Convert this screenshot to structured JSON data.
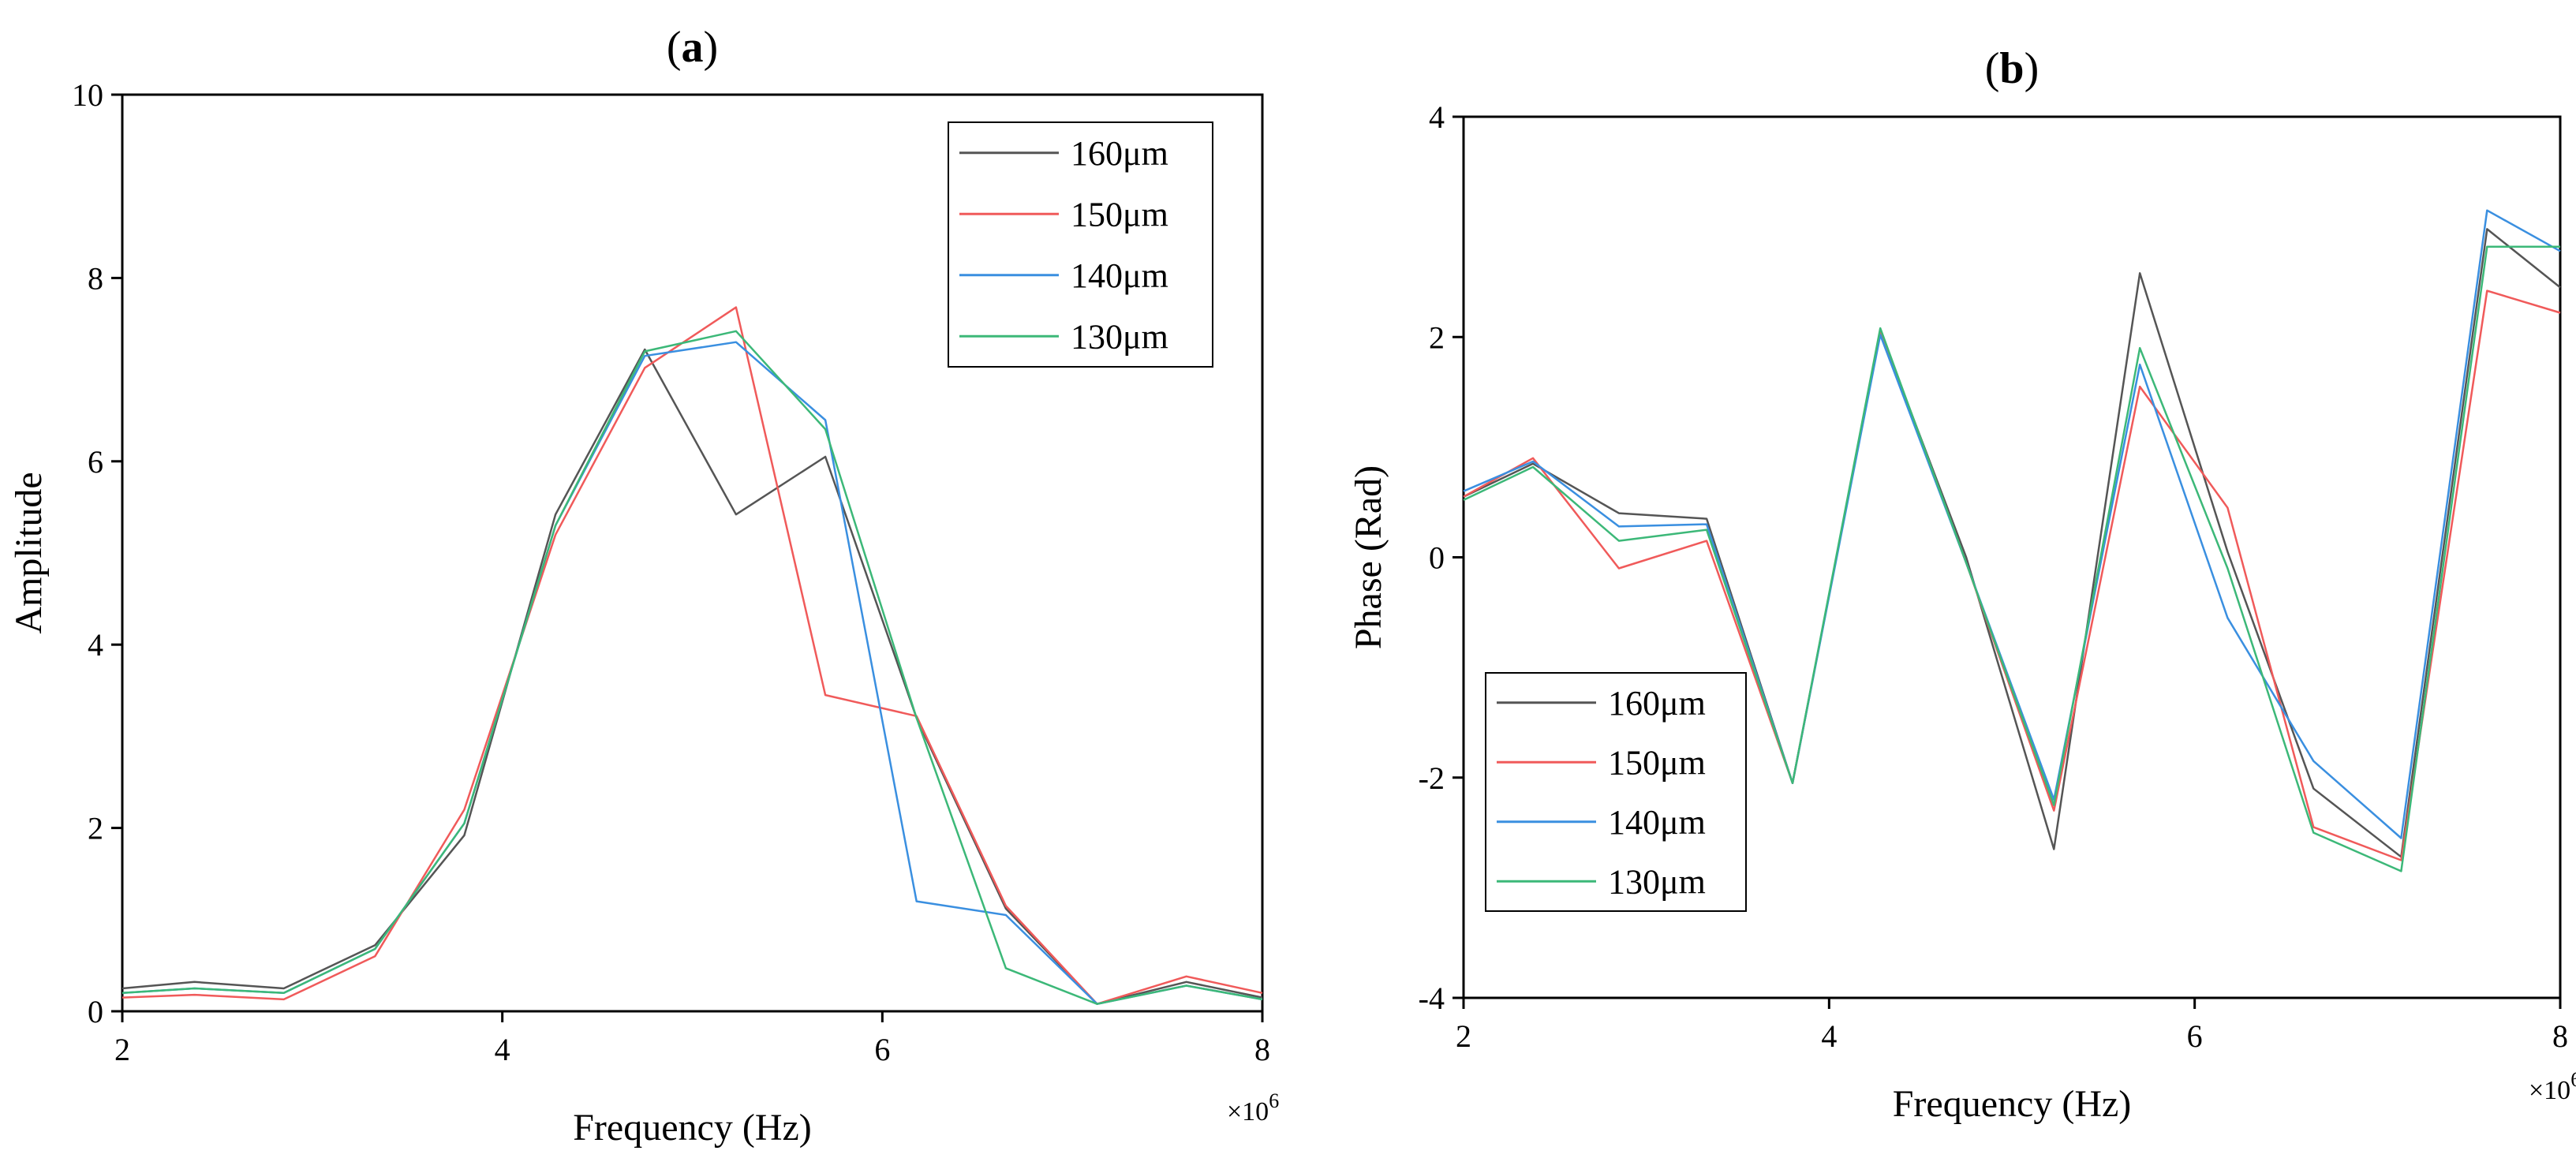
{
  "chart_data": [
    {
      "type": "line",
      "panel_letter": "a",
      "title": "",
      "xlabel": "Frequency (Hz)",
      "ylabel": "Amplitude",
      "x_multiplier_label": "×10",
      "x_multiplier_exp": "6",
      "xlim": [
        2,
        8
      ],
      "ylim": [
        0,
        10
      ],
      "xticks": [
        2,
        4,
        6,
        8
      ],
      "yticks": [
        0,
        2,
        4,
        6,
        8,
        10
      ],
      "legend_position": "top-right",
      "x": [
        2.0,
        2.38,
        2.85,
        3.33,
        3.8,
        4.28,
        4.75,
        5.23,
        5.7,
        6.18,
        6.65,
        7.13,
        7.6,
        8.0
      ],
      "series": [
        {
          "name": "160μm",
          "color": "#555555",
          "values": [
            0.25,
            0.32,
            0.25,
            0.72,
            1.92,
            5.42,
            7.22,
            5.42,
            6.05,
            3.2,
            1.12,
            0.08,
            0.32,
            0.15
          ]
        },
        {
          "name": "150μm",
          "color": "#f05a5a",
          "values": [
            0.15,
            0.18,
            0.13,
            0.6,
            2.2,
            5.2,
            7.02,
            7.68,
            3.45,
            3.22,
            1.15,
            0.08,
            0.38,
            0.2
          ]
        },
        {
          "name": "140μm",
          "color": "#3a8fe0",
          "values": [
            0.2,
            0.25,
            0.2,
            0.68,
            2.05,
            5.3,
            7.15,
            7.3,
            6.45,
            1.2,
            1.05,
            0.08,
            0.28,
            0.13
          ]
        },
        {
          "name": "130μm",
          "color": "#3cb878",
          "values": [
            0.2,
            0.25,
            0.2,
            0.68,
            2.05,
            5.3,
            7.2,
            7.42,
            6.35,
            3.2,
            0.47,
            0.08,
            0.28,
            0.13
          ]
        }
      ]
    },
    {
      "type": "line",
      "panel_letter": "b",
      "title": "",
      "xlabel": "Frequency (Hz)",
      "ylabel": "Phase (Rad)",
      "x_multiplier_label": "×10",
      "x_multiplier_exp": "6",
      "xlim": [
        2,
        8
      ],
      "ylim": [
        -4,
        4
      ],
      "xticks": [
        2,
        4,
        6,
        8
      ],
      "yticks": [
        -4,
        -2,
        0,
        2,
        4
      ],
      "legend_position": "bottom-left",
      "x": [
        2.0,
        2.38,
        2.85,
        3.33,
        3.8,
        4.28,
        4.75,
        5.23,
        5.7,
        6.18,
        6.65,
        7.13,
        7.6,
        8.0
      ],
      "series": [
        {
          "name": "160μm",
          "color": "#555555",
          "values": [
            0.55,
            0.85,
            0.4,
            0.35,
            -2.05,
            2.05,
            0.0,
            -2.65,
            2.58,
            0.05,
            -2.1,
            -2.72,
            2.98,
            2.45
          ]
        },
        {
          "name": "150μm",
          "color": "#f05a5a",
          "values": [
            0.55,
            0.9,
            -0.1,
            0.15,
            -2.05,
            2.05,
            -0.05,
            -2.3,
            1.55,
            0.45,
            -2.45,
            -2.75,
            2.42,
            2.22
          ]
        },
        {
          "name": "140μm",
          "color": "#3a8fe0",
          "values": [
            0.6,
            0.87,
            0.28,
            0.3,
            -2.05,
            2.02,
            -0.05,
            -2.2,
            1.75,
            -0.55,
            -1.85,
            -2.55,
            3.15,
            2.78
          ]
        },
        {
          "name": "130μm",
          "color": "#3cb878",
          "values": [
            0.52,
            0.82,
            0.15,
            0.25,
            -2.05,
            2.08,
            -0.05,
            -2.25,
            1.9,
            -0.1,
            -2.5,
            -2.85,
            2.82,
            2.82
          ]
        }
      ]
    }
  ]
}
